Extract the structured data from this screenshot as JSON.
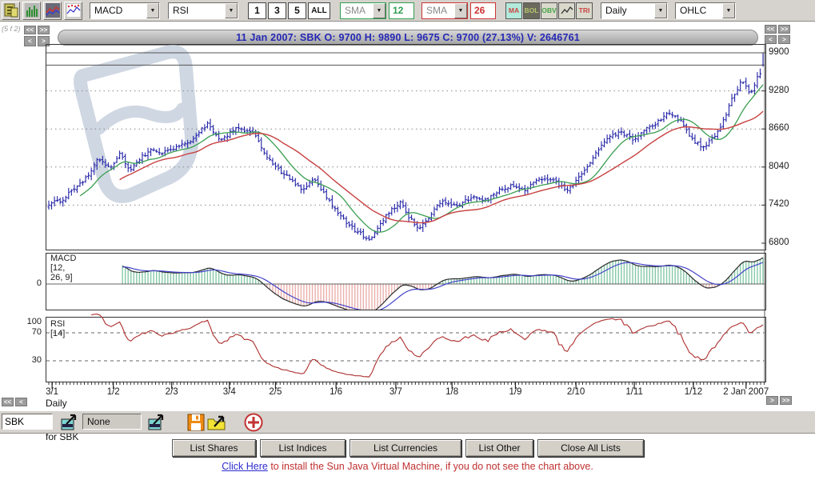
{
  "toolbar": {
    "indicator1": "MACD",
    "indicator2": "RSI",
    "periods": [
      "1",
      "3",
      "5",
      "ALL"
    ],
    "sma1": {
      "label": "SMA",
      "value": "12",
      "color": "#2e9e4f"
    },
    "sma2": {
      "label": "SMA",
      "value": "26",
      "color": "#cc3333"
    },
    "toggles": [
      {
        "label": "MA",
        "bg": "#b2eadb",
        "fg": "#cc4444"
      },
      {
        "label": "BOL",
        "bg": "#69695c",
        "fg": "#b9c46f"
      },
      {
        "label": "OBV",
        "bg": "#d9d9cc",
        "fg": "#44a344"
      },
      {
        "label": "",
        "bg": "#d9d9cc",
        "fg": "#333333",
        "icon": "mini-chart"
      },
      {
        "label": "TRI",
        "bg": "#d9d9cc",
        "fg": "#cc4444"
      }
    ],
    "frequency": "Daily",
    "chart_style": "OHLC"
  },
  "header": {
    "corner_label": "(5 f 2)",
    "title": "11 Jan 2007: SBK  O: 9700  H: 9890  L: 9675  C: 9700 (27.13%)  V: 2646761",
    "nav": {
      "fast_back": "<<",
      "fast_fwd": ">>",
      "back": "<",
      "fwd": ">"
    }
  },
  "chart_data": {
    "type": "ohlc",
    "symbol": "SBK",
    "frequency": "Daily",
    "caption": "Daily Price Ranges  for SBK",
    "last_bar": {
      "date": "11 Jan 2007",
      "open": 9700,
      "high": 9890,
      "low": 9675,
      "close": 9700,
      "change_pct": "27.13%",
      "volume": 2646761
    },
    "y_axis": {
      "ticks": [
        9900,
        9280,
        8660,
        8040,
        7420,
        6800
      ],
      "min": 6800,
      "max": 9900
    },
    "x_labels": [
      {
        "label": "3/1",
        "t": 0.009
      },
      {
        "label": "1/2",
        "t": 0.094
      },
      {
        "label": "2/3",
        "t": 0.175
      },
      {
        "label": "3/4",
        "t": 0.255
      },
      {
        "label": "2/5",
        "t": 0.319
      },
      {
        "label": "1/6",
        "t": 0.403
      },
      {
        "label": "3/7",
        "t": 0.486
      },
      {
        "label": "1/8",
        "t": 0.564
      },
      {
        "label": "1/9",
        "t": 0.652
      },
      {
        "label": "2/10",
        "t": 0.736
      },
      {
        "label": "1/11",
        "t": 0.817
      },
      {
        "label": "1/12",
        "t": 0.899
      },
      {
        "label": "2 Jan 2007",
        "t": 0.972
      }
    ],
    "bars_count": 253,
    "close_anchors": [
      [
        0.0,
        7420
      ],
      [
        0.02,
        7520
      ],
      [
        0.04,
        7720
      ],
      [
        0.055,
        7900
      ],
      [
        0.068,
        8180
      ],
      [
        0.085,
        8020
      ],
      [
        0.1,
        8280
      ],
      [
        0.113,
        7960
      ],
      [
        0.128,
        8180
      ],
      [
        0.143,
        8330
      ],
      [
        0.16,
        8270
      ],
      [
        0.18,
        8380
      ],
      [
        0.2,
        8470
      ],
      [
        0.222,
        8760
      ],
      [
        0.24,
        8470
      ],
      [
        0.252,
        8570
      ],
      [
        0.263,
        8700
      ],
      [
        0.276,
        8640
      ],
      [
        0.288,
        8620
      ],
      [
        0.3,
        8280
      ],
      [
        0.315,
        8060
      ],
      [
        0.33,
        7920
      ],
      [
        0.345,
        7780
      ],
      [
        0.358,
        7650
      ],
      [
        0.372,
        7860
      ],
      [
        0.388,
        7550
      ],
      [
        0.405,
        7300
      ],
      [
        0.42,
        7080
      ],
      [
        0.435,
        6960
      ],
      [
        0.45,
        6840
      ],
      [
        0.463,
        7120
      ],
      [
        0.478,
        7340
      ],
      [
        0.492,
        7460
      ],
      [
        0.506,
        7200
      ],
      [
        0.52,
        7030
      ],
      [
        0.534,
        7270
      ],
      [
        0.55,
        7500
      ],
      [
        0.565,
        7400
      ],
      [
        0.58,
        7460
      ],
      [
        0.597,
        7560
      ],
      [
        0.613,
        7490
      ],
      [
        0.63,
        7650
      ],
      [
        0.648,
        7730
      ],
      [
        0.663,
        7650
      ],
      [
        0.68,
        7800
      ],
      [
        0.698,
        7860
      ],
      [
        0.714,
        7760
      ],
      [
        0.728,
        7660
      ],
      [
        0.74,
        7820
      ],
      [
        0.752,
        8010
      ],
      [
        0.764,
        8260
      ],
      [
        0.777,
        8450
      ],
      [
        0.79,
        8560
      ],
      [
        0.802,
        8610
      ],
      [
        0.812,
        8520
      ],
      [
        0.822,
        8480
      ],
      [
        0.832,
        8620
      ],
      [
        0.843,
        8700
      ],
      [
        0.855,
        8800
      ],
      [
        0.868,
        8950
      ],
      [
        0.878,
        8860
      ],
      [
        0.888,
        8730
      ],
      [
        0.898,
        8550
      ],
      [
        0.908,
        8420
      ],
      [
        0.918,
        8350
      ],
      [
        0.928,
        8490
      ],
      [
        0.937,
        8620
      ],
      [
        0.947,
        8870
      ],
      [
        0.957,
        9160
      ],
      [
        0.967,
        9390
      ],
      [
        0.974,
        9440
      ],
      [
        0.981,
        9210
      ],
      [
        0.988,
        9360
      ],
      [
        0.994,
        9560
      ],
      [
        1.0,
        9700
      ]
    ],
    "overlays": [
      {
        "name": "SMA",
        "period": 12,
        "color": "#3a9e50"
      },
      {
        "name": "SMA",
        "period": 26,
        "color": "#c84040"
      }
    ],
    "panels": {
      "macd": {
        "label": "MACD [12, 26, 9]",
        "zero_label": "0",
        "params": [
          12,
          26,
          9
        ]
      },
      "rsi": {
        "label": "RSI [14]",
        "period": 14,
        "ticks": [
          "100",
          "70",
          "30"
        ],
        "levels": [
          70,
          30
        ]
      }
    },
    "colors": {
      "bar": "#2323a8",
      "sma_fast": "#3a9e50",
      "sma_slow": "#c84040",
      "macd_line": "#2b2b2b",
      "signal_line": "#4444cc",
      "hist_pos": "#86c8a6",
      "hist_neg": "#eab0ac",
      "rsi_line": "#b03535",
      "grid": "#888888",
      "crosshair": "#555555",
      "watermark": "#cfd7e3"
    }
  },
  "footer": {
    "symbol_value": "SBK",
    "list_value": "None",
    "buttons": [
      "List Shares",
      "List Indices",
      "List Currencies",
      "List Other",
      "Close All Lists"
    ],
    "java_note": {
      "link_text": "Click Here",
      "rest": " to install the Sun Java Virtual Machine, if you do not see the chart above."
    }
  }
}
